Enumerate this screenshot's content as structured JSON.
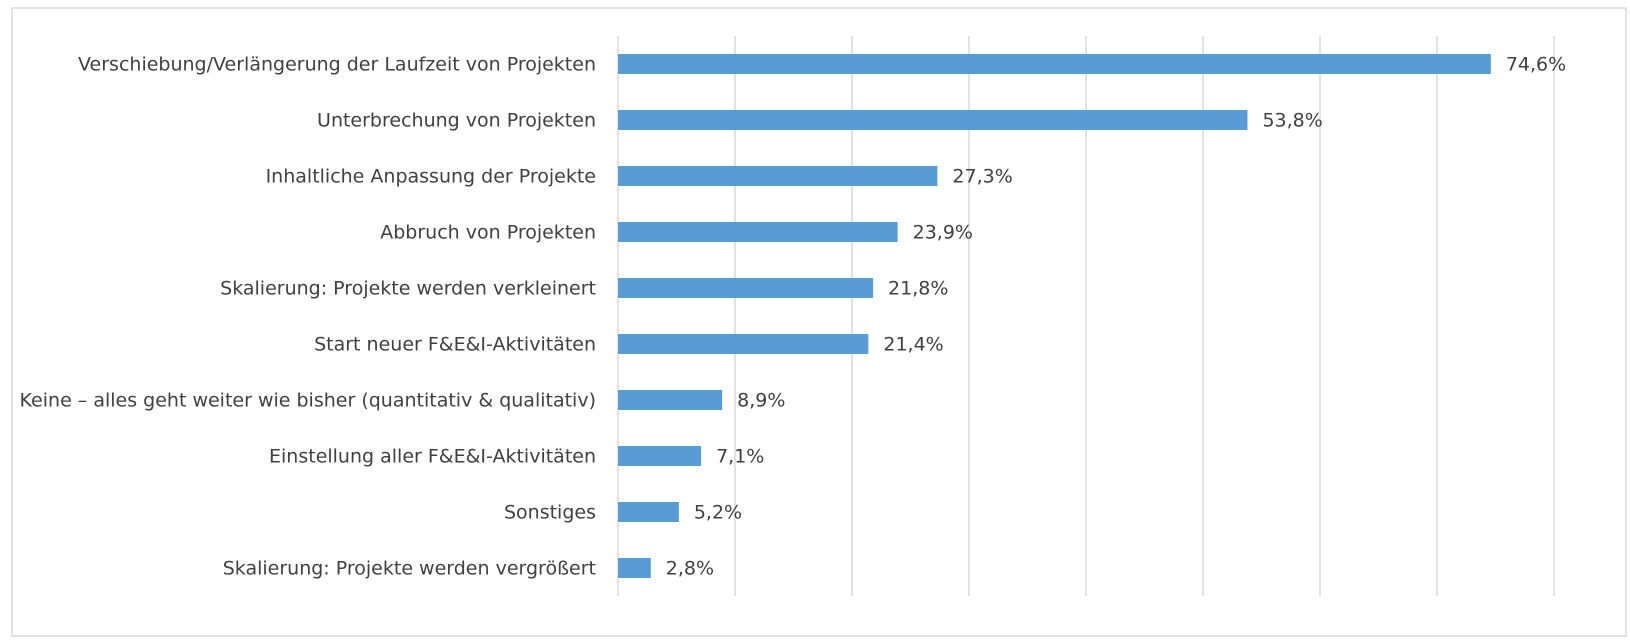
{
  "chart_data": {
    "type": "bar",
    "orientation": "horizontal",
    "categories": [
      "Verschiebung/Verlängerung der Laufzeit von Projekten",
      "Unterbrechung von Projekten",
      "Inhaltliche Anpassung der Projekte",
      "Abbruch von Projekten",
      "Skalierung: Projekte werden verkleinert",
      "Start neuer F&E&I-Aktivitäten",
      "Keine – alles geht weiter wie bisher (quantitativ & qualitativ)",
      "Einstellung aller F&E&I-Aktivitäten",
      "Sonstiges",
      "Skalierung: Projekte werden vergrößert"
    ],
    "values": [
      74.6,
      53.8,
      27.3,
      23.9,
      21.8,
      21.4,
      8.9,
      7.1,
      5.2,
      2.8
    ],
    "value_labels": [
      "74,6%",
      "53,8%",
      "27,3%",
      "23,9%",
      "21,8%",
      "21,4%",
      "8,9%",
      "7,1%",
      "5,2%",
      "2,8%"
    ],
    "color": "#5b9bd5",
    "xlim": [
      0,
      80
    ],
    "xticks": [
      0,
      10,
      20,
      30,
      40,
      50,
      60,
      70,
      80
    ],
    "grid": true
  }
}
